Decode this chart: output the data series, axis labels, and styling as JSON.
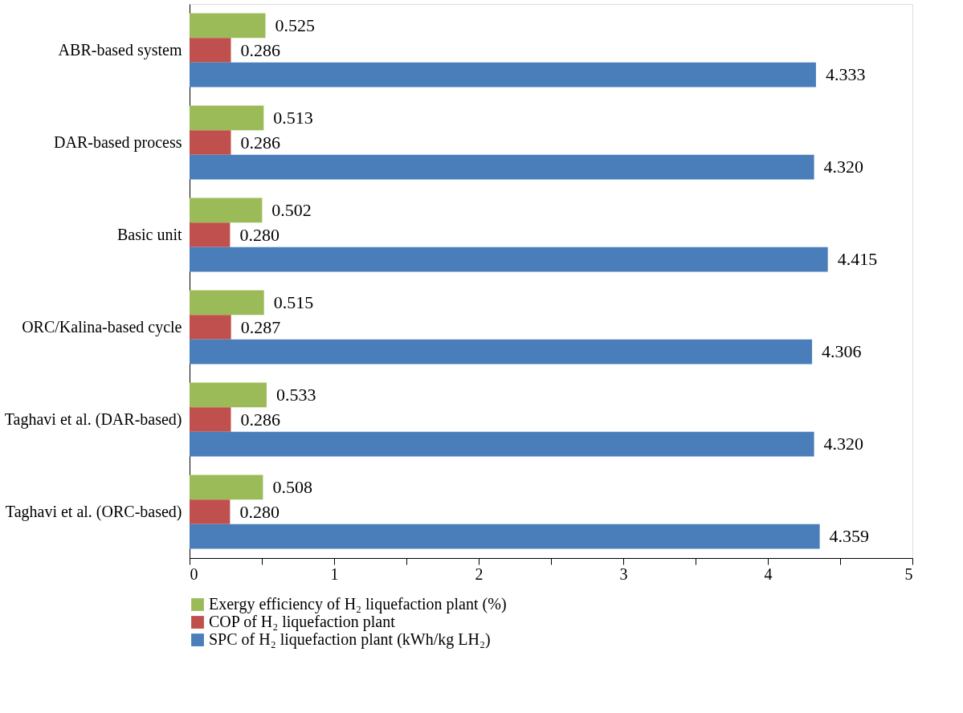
{
  "chart_data": {
    "type": "bar",
    "orientation": "horizontal",
    "categories": [
      "ABR-based system",
      "DAR-based process",
      "Basic unit",
      "ORC/Kalina-based cycle",
      "Taghavi et al. (DAR-based)",
      "Taghavi et al. (ORC-based)"
    ],
    "series": [
      {
        "name": "Exergy efficiency of H₂ liquefaction plant (%)",
        "color": "#9bbb59",
        "values": [
          0.525,
          0.513,
          0.502,
          0.515,
          0.533,
          0.508
        ],
        "value_labels": [
          "0.525",
          "0.513",
          "0.502",
          "0.515",
          "0.533",
          "0.508"
        ]
      },
      {
        "name": "COP of H₂ liquefaction plant",
        "color": "#c0504d",
        "values": [
          0.286,
          0.286,
          0.28,
          0.287,
          0.286,
          0.28
        ],
        "value_labels": [
          "0.286",
          "0.286",
          "0.280",
          "0.287",
          "0.286",
          "0.280"
        ]
      },
      {
        "name": "SPC of H₂ liquefaction plant (kWh/kg LH₂)",
        "color": "#4a7ebb",
        "values": [
          4.333,
          4.32,
          4.415,
          4.306,
          4.32,
          4.359
        ],
        "value_labels": [
          "4.333",
          "4.320",
          "4.415",
          "4.306",
          "4.320",
          "4.359"
        ]
      }
    ],
    "xlim": [
      0,
      5
    ],
    "xticks": [
      0,
      {
        "value": 0.5,
        "label": null
      },
      1,
      {
        "value": 1.5,
        "label": null
      },
      2,
      {
        "value": 2.5,
        "label": null
      },
      3,
      {
        "value": 3.5,
        "label": null
      },
      4,
      {
        "value": 4.5,
        "label": null
      },
      5
    ],
    "grid": false,
    "legend": "bottom"
  }
}
